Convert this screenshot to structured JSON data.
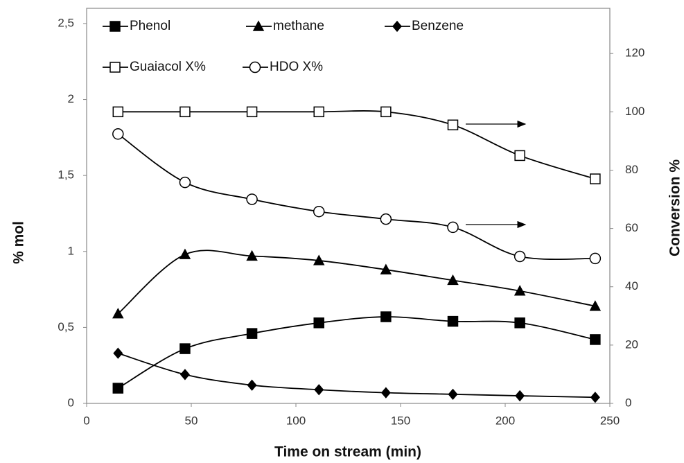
{
  "chart_data": {
    "type": "line",
    "xlabel": "Time on stream (min)",
    "ylabel": "% mol",
    "y2label": "Conversion %",
    "x": [
      15,
      47,
      79,
      111,
      143,
      175,
      207,
      243
    ],
    "xlim": [
      0,
      250
    ],
    "xticks": [
      0,
      50,
      100,
      150,
      200,
      250
    ],
    "ylim": [
      0,
      2.6
    ],
    "yticks": [
      0,
      {
        "value": 0.5,
        "label": "0,5"
      },
      1,
      {
        "value": 1.5,
        "label": "1,5"
      },
      2,
      {
        "value": 2.5,
        "label": "2,5"
      }
    ],
    "y2lim": [
      0,
      135.5
    ],
    "y2ticks": [
      0,
      20,
      40,
      60,
      80,
      100,
      120
    ],
    "grid": false,
    "smooth": true,
    "series": [
      {
        "name": "Phenol",
        "color": "#000000",
        "marker": "square",
        "filled": true,
        "values": [
          0.1,
          0.36,
          0.46,
          0.53,
          0.57,
          0.54,
          0.53,
          0.42
        ]
      },
      {
        "name": "methane",
        "color": "#000000",
        "marker": "triangle",
        "filled": true,
        "values": [
          0.59,
          0.98,
          0.97,
          0.94,
          0.88,
          0.81,
          0.74,
          0.64
        ]
      },
      {
        "name": "Benzene",
        "color": "#000000",
        "marker": "diamond",
        "filled": true,
        "values": [
          0.33,
          0.19,
          0.12,
          0.09,
          0.07,
          0.06,
          0.05,
          0.04
        ]
      },
      {
        "name": "Guaiacol X%",
        "color": "#000000",
        "marker": "square",
        "filled": false,
        "axis": "y2",
        "values": [
          100,
          100,
          100,
          100,
          100,
          95.5,
          85,
          77
        ]
      },
      {
        "name": "HDO X%",
        "color": "#000000",
        "marker": "circle",
        "filled": false,
        "axis": "y2",
        "values": [
          92.4,
          75.8,
          70,
          65.8,
          63.2,
          60.4,
          50.4,
          49.7
        ]
      }
    ]
  }
}
